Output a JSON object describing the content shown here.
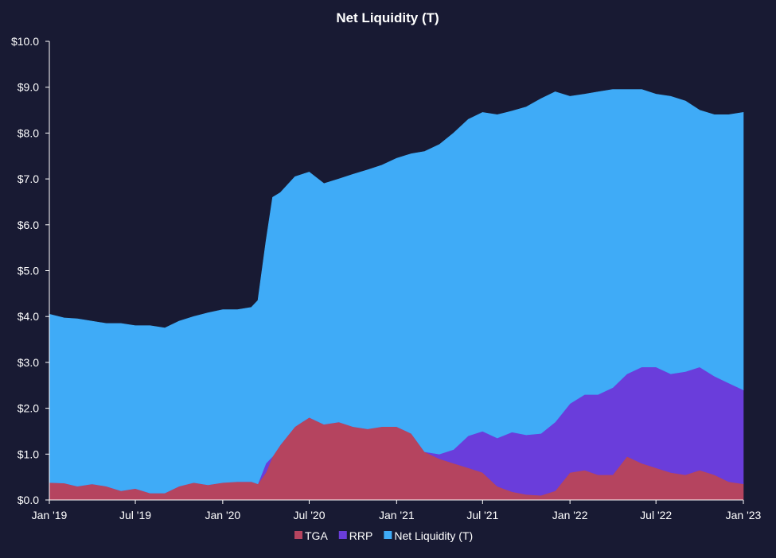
{
  "chart_data": {
    "type": "area",
    "stacked": true,
    "title": "Net Liquidity (T)",
    "xlabel": "",
    "ylabel": "",
    "x_dates": [
      "2019-01-01",
      "2019-02-01",
      "2019-03-01",
      "2019-04-01",
      "2019-05-01",
      "2019-06-01",
      "2019-07-01",
      "2019-08-01",
      "2019-09-01",
      "2019-10-01",
      "2019-11-01",
      "2019-12-01",
      "2020-01-01",
      "2020-02-01",
      "2020-03-01",
      "2020-03-15",
      "2020-04-01",
      "2020-04-15",
      "2020-05-01",
      "2020-06-01",
      "2020-07-01",
      "2020-08-01",
      "2020-09-01",
      "2020-10-01",
      "2020-11-01",
      "2020-12-01",
      "2021-01-01",
      "2021-02-01",
      "2021-03-01",
      "2021-04-01",
      "2021-05-01",
      "2021-06-01",
      "2021-07-01",
      "2021-08-01",
      "2021-09-01",
      "2021-10-01",
      "2021-11-01",
      "2021-12-01",
      "2022-01-01",
      "2022-02-01",
      "2022-03-01",
      "2022-04-01",
      "2022-05-01",
      "2022-06-01",
      "2022-07-01",
      "2022-08-01",
      "2022-09-01",
      "2022-10-01",
      "2022-11-01",
      "2022-12-01",
      "2023-01-01"
    ],
    "series": [
      {
        "name": "TGA",
        "color": "#b5445f",
        "values": [
          0.38,
          0.37,
          0.3,
          0.35,
          0.3,
          0.2,
          0.25,
          0.15,
          0.15,
          0.3,
          0.38,
          0.33,
          0.38,
          0.4,
          0.4,
          0.35,
          0.6,
          0.95,
          1.2,
          1.6,
          1.8,
          1.65,
          1.7,
          1.6,
          1.55,
          1.6,
          1.6,
          1.45,
          1.05,
          0.9,
          0.8,
          0.7,
          0.6,
          0.3,
          0.18,
          0.12,
          0.1,
          0.2,
          0.6,
          0.65,
          0.55,
          0.55,
          0.95,
          0.8,
          0.7,
          0.6,
          0.55,
          0.65,
          0.55,
          0.4,
          0.35
        ]
      },
      {
        "name": "RRP",
        "color": "#6a3ddb",
        "values": [
          0.0,
          0.0,
          0.0,
          0.0,
          0.0,
          0.0,
          0.0,
          0.0,
          0.0,
          0.0,
          0.0,
          0.0,
          0.0,
          0.0,
          0.0,
          0.0,
          0.2,
          0.0,
          0.0,
          0.0,
          0.0,
          0.0,
          0.0,
          0.0,
          0.0,
          0.0,
          0.0,
          0.0,
          0.0,
          0.1,
          0.3,
          0.7,
          0.9,
          1.05,
          1.3,
          1.3,
          1.35,
          1.5,
          1.5,
          1.65,
          1.75,
          1.9,
          1.8,
          2.1,
          2.2,
          2.15,
          2.25,
          2.25,
          2.15,
          2.15,
          2.05
        ]
      },
      {
        "name": "Net Liquidity (T)",
        "color": "#3fabf7",
        "values": [
          3.67,
          3.6,
          3.65,
          3.55,
          3.55,
          3.65,
          3.55,
          3.65,
          3.6,
          3.6,
          3.62,
          3.75,
          3.77,
          3.75,
          3.8,
          4.0,
          4.85,
          5.65,
          5.5,
          5.45,
          5.35,
          5.25,
          5.3,
          5.5,
          5.65,
          5.7,
          5.85,
          6.1,
          6.55,
          6.75,
          6.9,
          6.9,
          6.95,
          7.05,
          7.0,
          7.15,
          7.3,
          7.2,
          6.7,
          6.55,
          6.6,
          6.5,
          6.2,
          6.05,
          5.95,
          6.05,
          5.9,
          5.6,
          5.7,
          5.85,
          6.05
        ]
      }
    ],
    "ylim": [
      0,
      10
    ],
    "yticks": [
      "$0.0",
      "$1.0",
      "$2.0",
      "$3.0",
      "$4.0",
      "$5.0",
      "$6.0",
      "$7.0",
      "$8.0",
      "$9.0",
      "$10.0"
    ],
    "xtick_dates": [
      "2019-01-01",
      "2019-07-01",
      "2020-01-01",
      "2020-07-01",
      "2021-01-01",
      "2021-07-01",
      "2022-01-01",
      "2022-07-01",
      "2023-01-01"
    ],
    "xticks": [
      "Jan '19",
      "Jul '19",
      "Jan '20",
      "Jul '20",
      "Jan '21",
      "Jul '21",
      "Jan '22",
      "Jul '22",
      "Jan '23"
    ],
    "grid": false,
    "legend_position": "bottom"
  },
  "colors": {
    "background": "#181a33",
    "axis": "#ffffff"
  }
}
